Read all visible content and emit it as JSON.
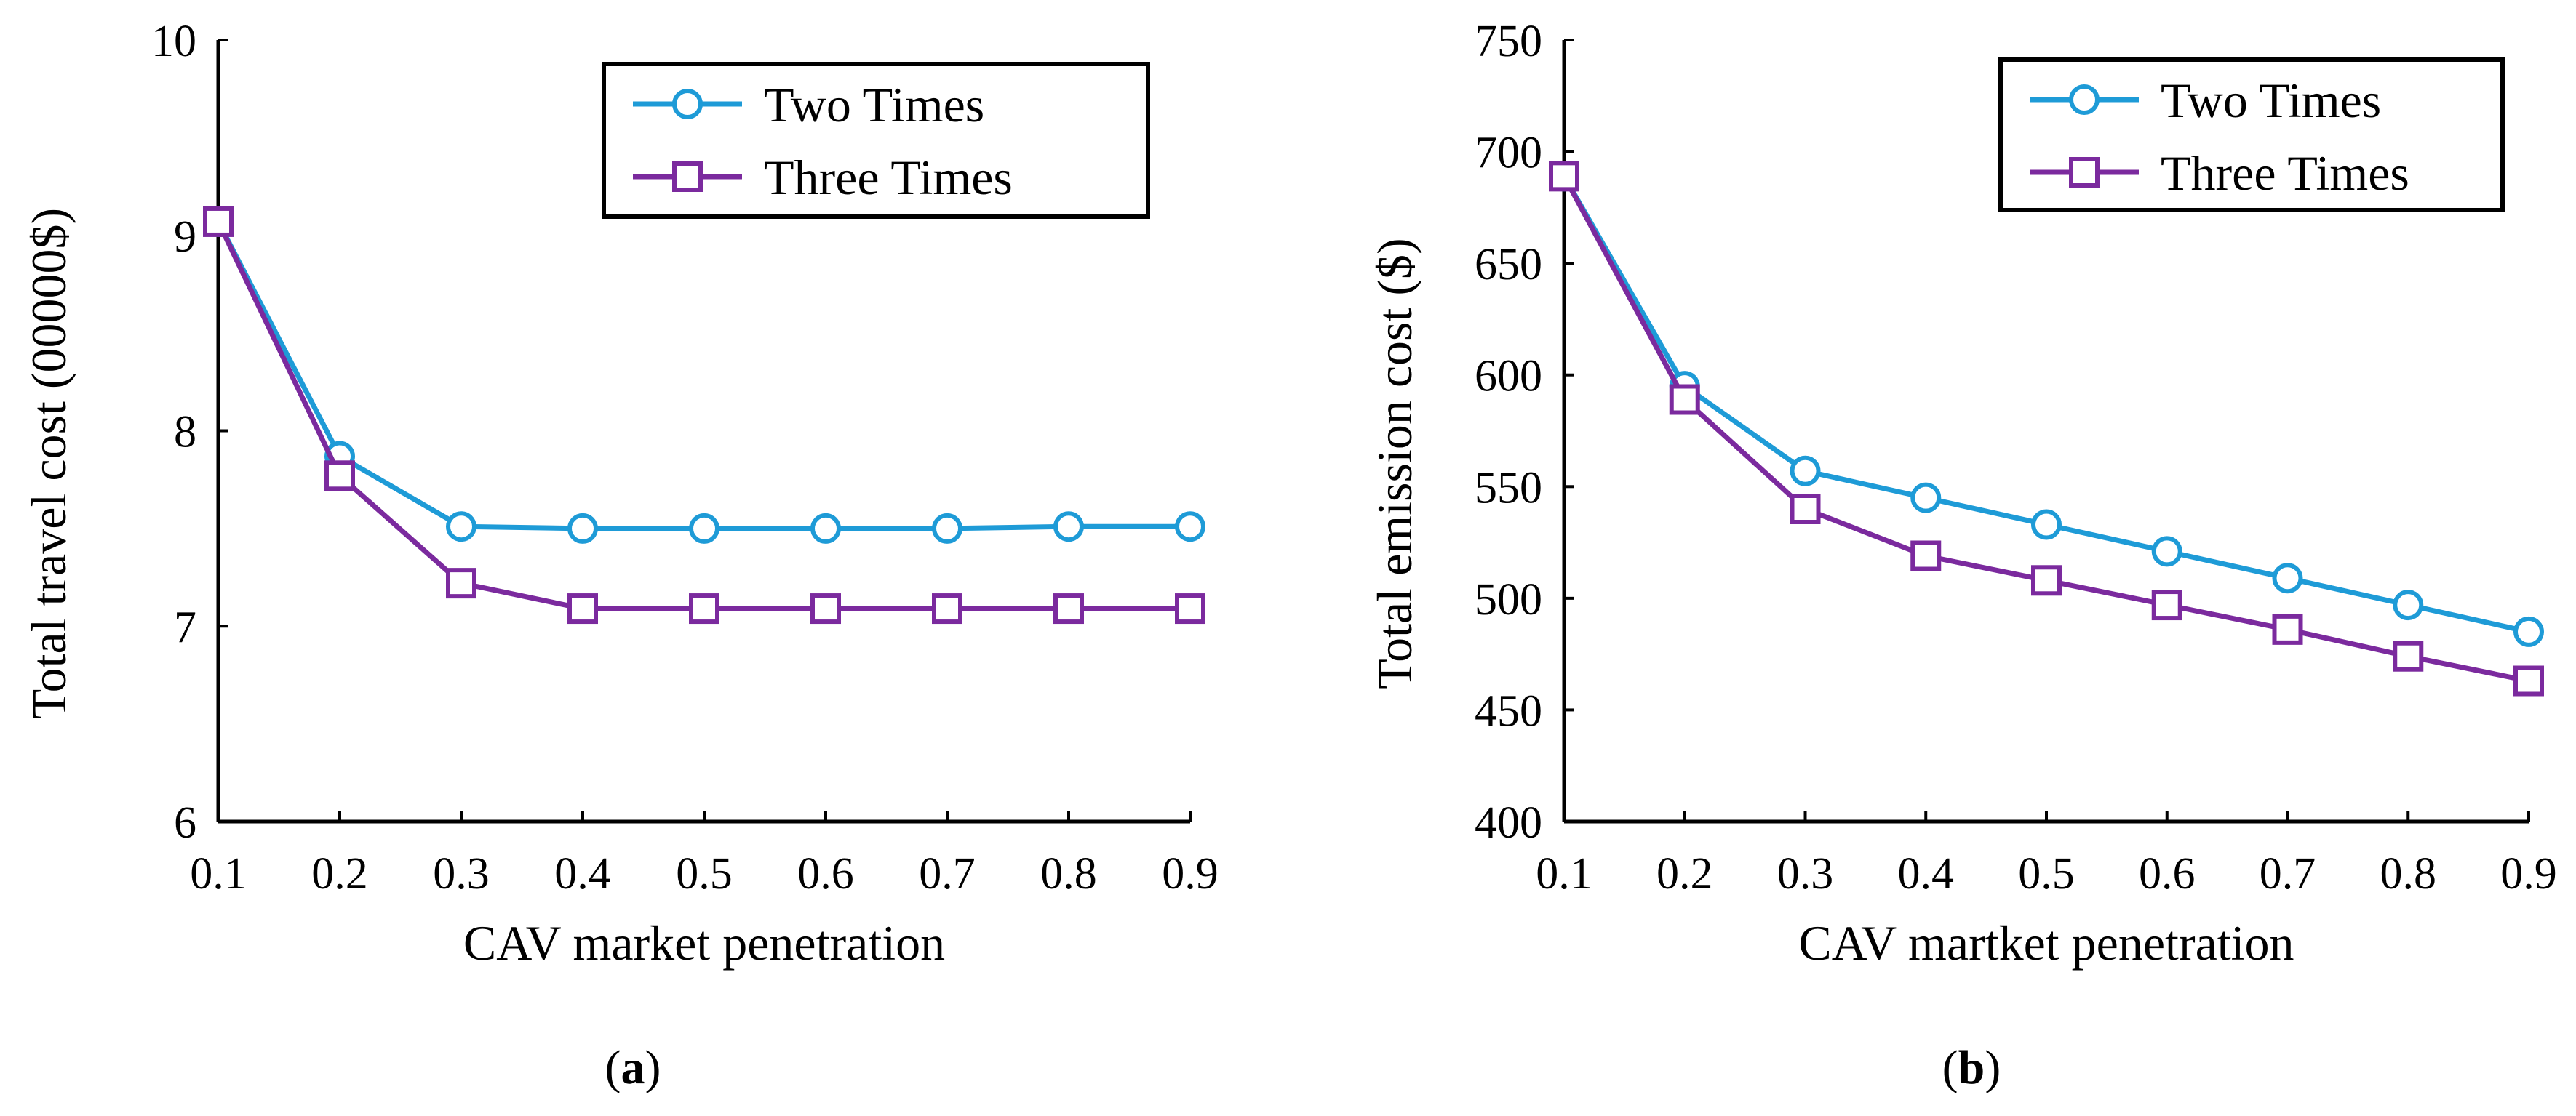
{
  "colors": {
    "two_times": "#1e9bd7",
    "three_times": "#7b2a9e",
    "axis": "#000000",
    "background": "#ffffff"
  },
  "chart_data": [
    {
      "type": "line",
      "panel_label": "a",
      "title": "",
      "xlabel": "CAV market penetration",
      "ylabel": "Total travel cost (00000$)",
      "x": [
        0.1,
        0.2,
        0.3,
        0.4,
        0.5,
        0.6,
        0.7,
        0.8,
        0.9
      ],
      "x_tick_labels": [
        "0.1",
        "0.2",
        "0.3",
        "0.4",
        "0.5",
        "0.6",
        "0.7",
        "0.8",
        "0.9"
      ],
      "y_ticks": [
        6,
        7,
        8,
        9,
        10
      ],
      "y_tick_labels": [
        "6",
        "7",
        "8",
        "9",
        "10"
      ],
      "xlim": [
        0.1,
        0.9
      ],
      "ylim": [
        6,
        10
      ],
      "grid": false,
      "legend_position": "top-right",
      "series": [
        {
          "name": "Two Times",
          "marker": "circle",
          "values": [
            9.07,
            7.87,
            7.51,
            7.5,
            7.5,
            7.5,
            7.5,
            7.51,
            7.51
          ]
        },
        {
          "name": "Three Times",
          "marker": "square",
          "values": [
            9.07,
            7.77,
            7.22,
            7.09,
            7.09,
            7.09,
            7.09,
            7.09,
            7.09
          ]
        }
      ]
    },
    {
      "type": "line",
      "panel_label": "b",
      "title": "",
      "xlabel": "CAV martket penetration",
      "ylabel": "Total emission cost ($)",
      "x": [
        0.1,
        0.2,
        0.3,
        0.4,
        0.5,
        0.6,
        0.7,
        0.8,
        0.9
      ],
      "x_tick_labels": [
        "0.1",
        "0.2",
        "0.3",
        "0.4",
        "0.5",
        "0.6",
        "0.7",
        "0.8",
        "0.9"
      ],
      "y_ticks": [
        400,
        450,
        500,
        550,
        600,
        650,
        700,
        750
      ],
      "y_tick_labels": [
        "400",
        "450",
        "500",
        "550",
        "600",
        "650",
        "700",
        "750"
      ],
      "xlim": [
        0.1,
        0.9
      ],
      "ylim": [
        400,
        750
      ],
      "grid": false,
      "legend_position": "top-right",
      "series": [
        {
          "name": "Two Times",
          "marker": "circle",
          "values": [
            689,
            595,
            557,
            545,
            533,
            521,
            509,
            497,
            485
          ]
        },
        {
          "name": "Three Times",
          "marker": "square",
          "values": [
            689,
            589,
            540,
            519,
            508,
            497,
            486,
            474,
            463
          ]
        }
      ]
    }
  ]
}
